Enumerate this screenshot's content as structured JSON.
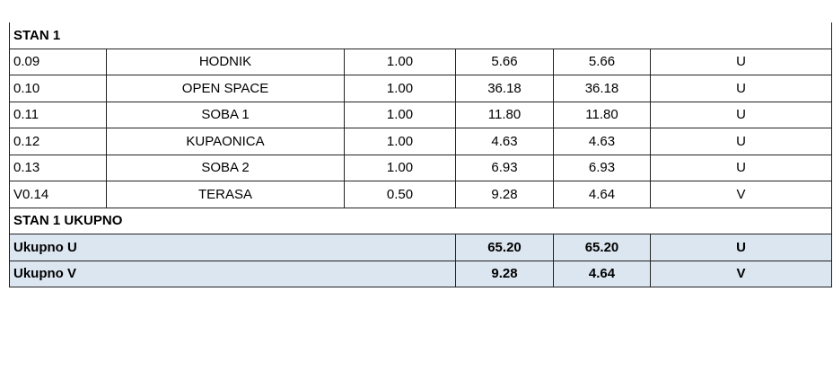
{
  "table": {
    "title": "STAN 1",
    "rows": [
      [
        "0.09",
        "HODNIK",
        "1.00",
        "5.66",
        "5.66",
        "U"
      ],
      [
        "0.10",
        "OPEN SPACE",
        "1.00",
        "36.18",
        "36.18",
        "U"
      ],
      [
        "0.11",
        "SOBA 1",
        "1.00",
        "11.80",
        "11.80",
        "U"
      ],
      [
        "0.12",
        "KUPAONICA",
        "1.00",
        "4.63",
        "4.63",
        "U"
      ],
      [
        "0.13",
        "SOBA 2",
        "1.00",
        "6.93",
        "6.93",
        "U"
      ],
      [
        "V0.14",
        "TERASA",
        "0.50",
        "9.28",
        "4.64",
        "V"
      ]
    ]
  },
  "summary": {
    "title": "STAN 1 UKUPNO",
    "rows": [
      [
        "Ukupno U",
        "65.20",
        "65.20",
        "U"
      ],
      [
        "Ukupno V",
        "9.28",
        "4.64",
        "V"
      ]
    ]
  }
}
